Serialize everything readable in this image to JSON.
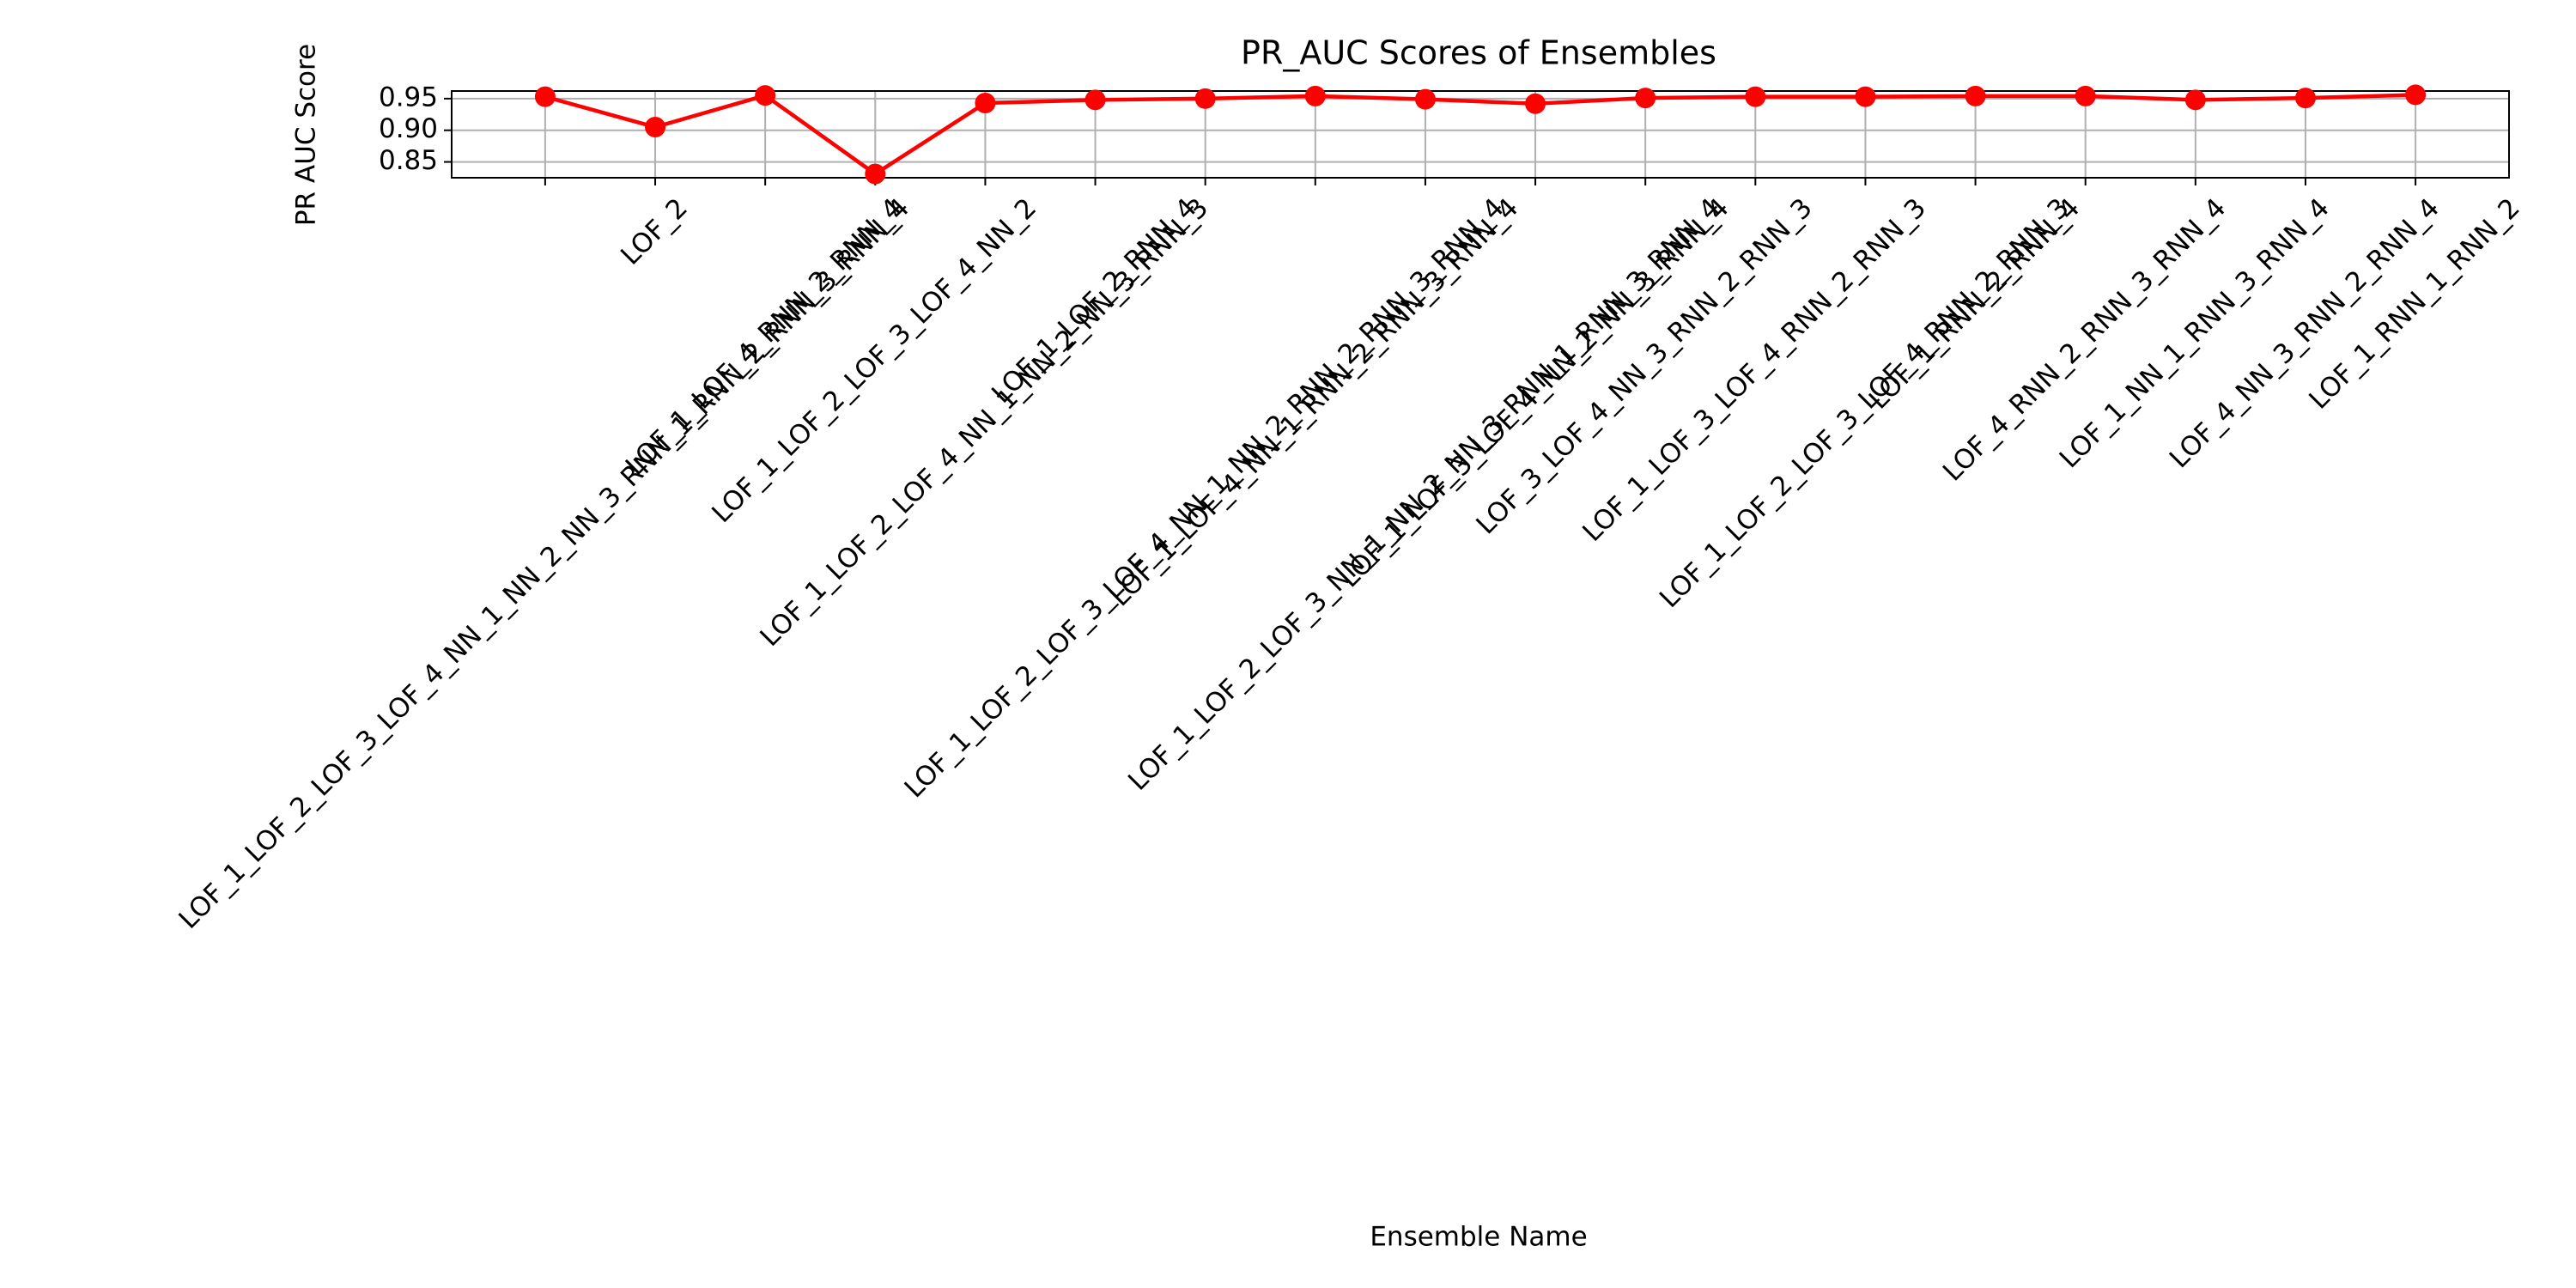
{
  "chart_data": {
    "type": "line",
    "title": "PR_AUC Scores of Ensembles",
    "x_label": "Ensemble Name",
    "y_label": "PR AUC Score",
    "categories": [
      "LOF_1_LOF_2_LOF_3_LOF_4_NN_1_NN_2_NN_3_RNN_1_RNN_2_RNN_3_RNN_4",
      "LOF_2",
      "LOF_1_LOF_4_RNN_2_RNN_4",
      "LOF_1_LOF_2_LOF_3_LOF_4_NN_2",
      "LOF_1_LOF_2_LOF_4_NN_1_NN_2_NN_3_RNN_3",
      "LOF_1_LOF_2_RNN_4",
      "LOF_1_LOF_2_LOF_3_LOF_4_NN_1_NN_2_RNN_2_RNN_3_RNN_4",
      "LOF_1_LOF_4_NN_1_RNN_2_RNN_3_RNN_4",
      "LOF_1_LOF_2_LOF_3_NN_1_NN_2_NN_3_RNN_1_RNN_3_RNN_4",
      "LOF_1_LOF_3_LOF_4_NN_2_NN_3_RNN_4",
      "LOF_3_LOF_4_NN_3_RNN_2_RNN_3",
      "LOF_1_LOF_3_LOF_4_RNN_2_RNN_3",
      "LOF_1_LOF_2_LOF_3_LOF_4_RNN_2_RNN_3",
      "LOF_1_RNN_2_RNN_4",
      "LOF_4_RNN_2_RNN_3_RNN_4",
      "LOF_1_NN_1_RNN_3_RNN_4",
      "LOF_4_NN_3_RNN_2_RNN_4",
      "LOF_1_RNN_1_RNN_2"
    ],
    "series": [
      {
        "name": "PR_AUC",
        "color": "#ff0000",
        "values": [
          0.953,
          0.905,
          0.955,
          0.831,
          0.943,
          0.948,
          0.95,
          0.954,
          0.949,
          0.942,
          0.951,
          0.953,
          0.953,
          0.954,
          0.954,
          0.948,
          0.951,
          0.956
        ]
      }
    ],
    "ylim": [
      0.825,
      0.962
    ],
    "yticks": [
      0.85,
      {
        "value": 0.9,
        "label": "0.90"
      },
      0.95
    ],
    "grid": true
  }
}
